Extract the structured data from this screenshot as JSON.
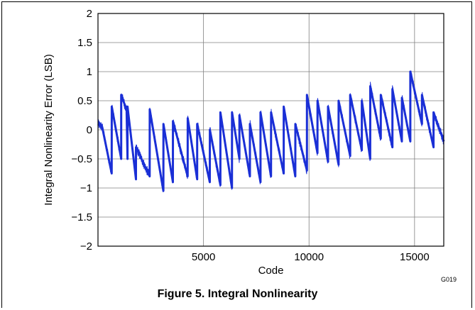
{
  "chart_data": {
    "type": "line",
    "title": "",
    "xlabel": "Code",
    "ylabel": "Integral Nonlinearity Error (LSB)",
    "xlim": [
      0,
      16384
    ],
    "ylim": [
      -2,
      2
    ],
    "x_ticks": [
      5000,
      10000,
      15000
    ],
    "x_tick_labels": [
      "5000",
      "10000",
      "15000"
    ],
    "y_ticks": [
      -2,
      -1.5,
      -1,
      -0.5,
      0,
      0.5,
      1,
      1.5,
      2
    ],
    "y_tick_labels": [
      "−2",
      "−1.5",
      "−1",
      "−0.5",
      "0",
      "0.5",
      "1",
      "1.5",
      "2"
    ],
    "grid": true,
    "legend": "none",
    "line_color": "#1a2fd6",
    "series": [
      {
        "x": [
          0,
          200,
          650,
          651,
          1100,
          1101,
          1350,
          1351,
          1400,
          1401,
          1800,
          1801,
          2450,
          2451,
          3100,
          3101,
          3550,
          3551,
          4250,
          4251,
          4700,
          4701,
          5300,
          5301,
          5800,
          5801,
          6350,
          6351,
          6700,
          6701,
          7200,
          7201,
          7700,
          7701,
          8200,
          8201,
          8800,
          8801,
          9350,
          9351,
          9900,
          9901,
          10400,
          10401,
          10900,
          10901,
          11400,
          11401,
          11950,
          11951,
          12500,
          12501,
          12900,
          12901,
          13400,
          13401,
          13950,
          13951,
          14400,
          14401,
          14800,
          14801,
          15350,
          15351,
          15900,
          15901,
          16384
        ],
        "y": [
          0.1,
          0.05,
          -0.75,
          0.4,
          -0.5,
          0.6,
          0.35,
          0.4,
          -0.5,
          0.4,
          -0.85,
          -0.3,
          -0.8,
          0.35,
          -1.05,
          0.1,
          -0.9,
          0.15,
          -0.8,
          0.2,
          -0.85,
          0.1,
          -0.9,
          0.0,
          -0.95,
          0.3,
          -1.0,
          0.3,
          -0.5,
          0.25,
          -0.8,
          0.1,
          -0.9,
          0.3,
          -0.8,
          0.3,
          -0.75,
          0.4,
          -0.8,
          0.1,
          -0.7,
          0.6,
          -0.4,
          0.5,
          -0.55,
          0.4,
          -0.6,
          0.5,
          -0.45,
          0.6,
          -0.35,
          0.5,
          -0.5,
          0.75,
          -0.15,
          0.6,
          -0.3,
          0.7,
          -0.2,
          0.55,
          -0.2,
          1.0,
          0.1,
          0.6,
          -0.3,
          0.3,
          -0.2
        ]
      }
    ]
  },
  "figure_id": "G019",
  "caption": "Figure 5. Integral Nonlinearity"
}
